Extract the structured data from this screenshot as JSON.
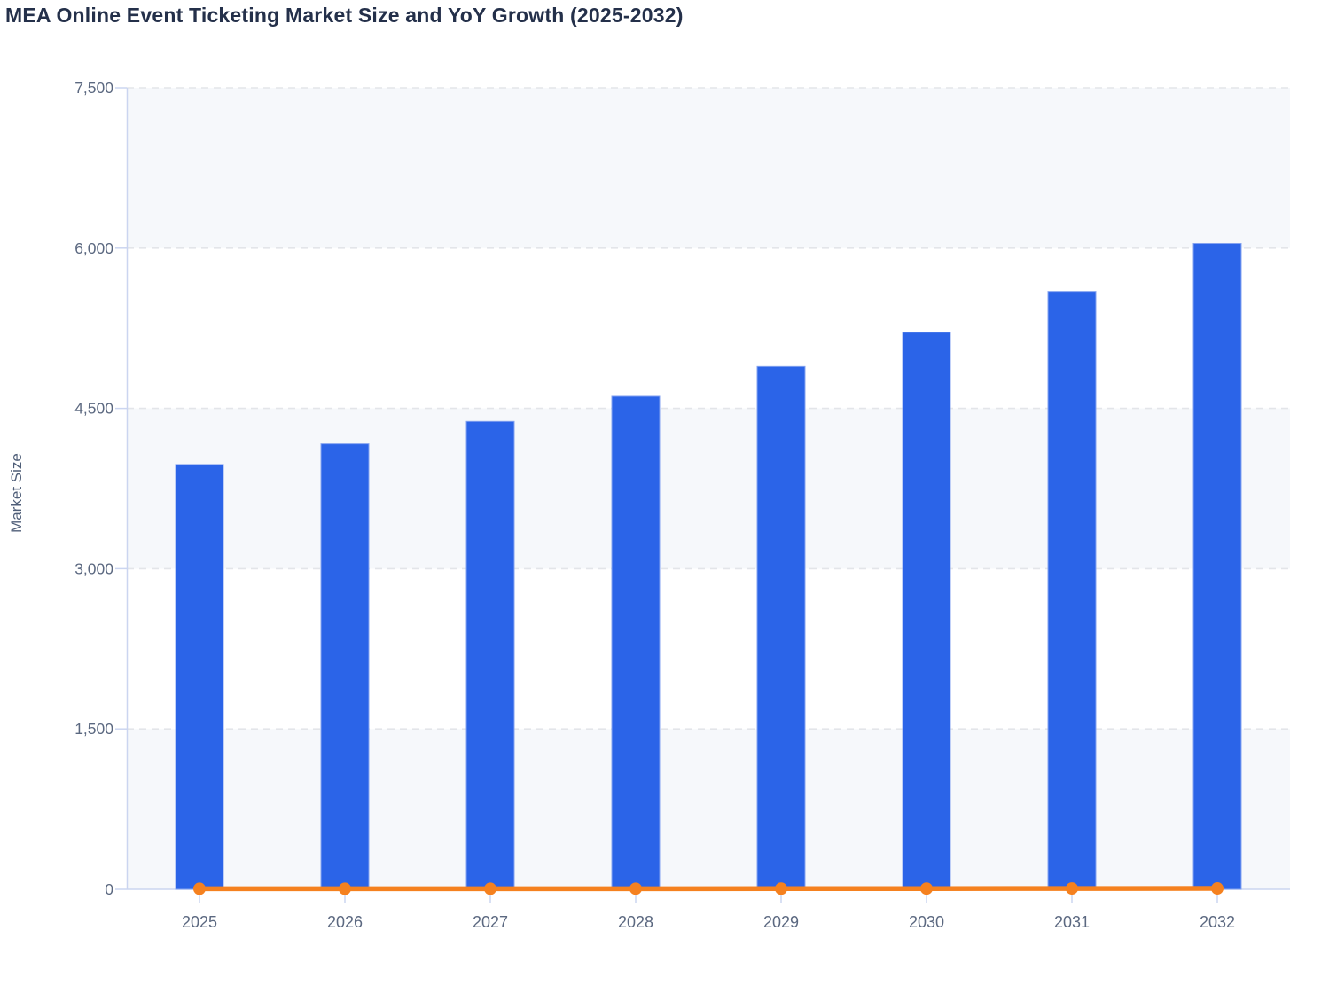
{
  "chart_data": {
    "type": "bar",
    "title": "MEA Online Event Ticketing Market Size and YoY Growth (2025-2032)",
    "ylabel": "Market Size",
    "xlabel": "",
    "categories": [
      "2025",
      "2026",
      "2027",
      "2028",
      "2029",
      "2030",
      "2031",
      "2032"
    ],
    "series": [
      {
        "name": "Market Size",
        "type": "bar",
        "values": [
          3975,
          4168,
          4378,
          4613,
          4892,
          5212,
          5595,
          6044
        ]
      },
      {
        "name": "YoY Growth",
        "type": "line",
        "values": [
          4.8,
          4.9,
          5.0,
          5.4,
          6.0,
          6.6,
          7.4,
          8.0
        ]
      }
    ],
    "ylim": [
      0,
      7500
    ],
    "yticks": [
      0,
      1500,
      3000,
      4500,
      6000,
      7500
    ],
    "ytick_labels": [
      "0",
      "1,500",
      "3,000",
      "4,500",
      "6,000",
      "7,500"
    ],
    "grid": "horizontal dashed",
    "plot_bands": "alternating horizontal stripes between gridlines",
    "legend": "none",
    "note": "YoY growth line renders flat along the zero baseline at this axis scale"
  },
  "colors": {
    "bar": "#2b64e8",
    "bar_border": "#85a3f0",
    "line": "#f5811f",
    "plot_band": "#f6f8fb",
    "gridline": "#e3e5e9",
    "axis": "#cbd5f0",
    "title_text": "#24304a",
    "tick_text": "#5b6880",
    "axis_title_text": "#4f5e78",
    "background": "#ffffff"
  }
}
